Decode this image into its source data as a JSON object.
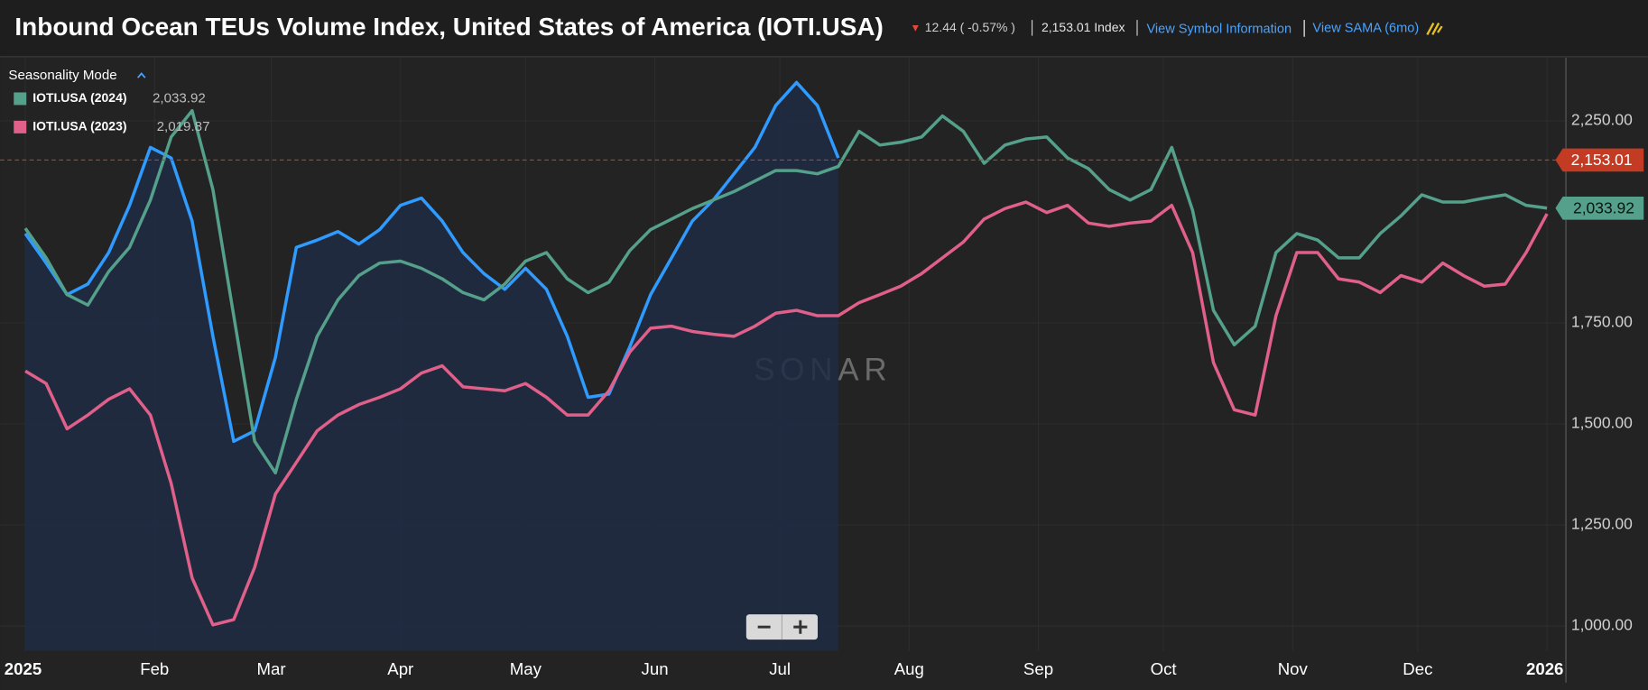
{
  "chart_data": {
    "type": "line",
    "title": "Inbound Ocean TEUs Volume Index, United States of America (IOTI.USA)",
    "change": "12.44 ( -0.57% )",
    "price": "2,153.01 Index",
    "links": [
      "View Symbol Information",
      "View SAMA (6mo)"
    ],
    "legend_title": "Seasonality Mode",
    "watermark": "SONAR",
    "xlim": [
      -6.05,
      369.55
    ],
    "xticks": [
      {
        "value": 0,
        "label": "2025"
      },
      {
        "value": 31,
        "label": "Feb"
      },
      {
        "value": 59,
        "label": "Mar"
      },
      {
        "value": 90,
        "label": "Apr"
      },
      {
        "value": 120,
        "label": "May"
      },
      {
        "value": 151,
        "label": "Jun"
      },
      {
        "value": 181,
        "label": "Jul"
      },
      {
        "value": 212,
        "label": "Aug"
      },
      {
        "value": 243,
        "label": "Sep"
      },
      {
        "value": 273,
        "label": "Oct"
      },
      {
        "value": 304,
        "label": "Nov"
      },
      {
        "value": 334,
        "label": "Dec"
      },
      {
        "value": 365,
        "label": "2026"
      }
    ],
    "ylim": [
      938,
      2406
    ],
    "yticks": [
      {
        "value": 1000,
        "label": "1,000.00"
      },
      {
        "value": 1250,
        "label": "1,250.00"
      },
      {
        "value": 1500,
        "label": "1,500.00"
      },
      {
        "value": 1750,
        "label": "1,750.00"
      },
      {
        "value": 2250,
        "label": "2,250.00"
      }
    ],
    "grid": true,
    "reference_line": {
      "value": 2153.01,
      "label": "2,153.01",
      "color": "#c23b22"
    },
    "x": [
      0,
      5,
      10,
      15,
      20,
      25,
      30,
      35,
      40,
      45,
      50,
      55,
      60,
      65,
      70,
      75,
      80,
      85,
      90,
      95,
      100,
      105,
      110,
      115,
      120,
      125,
      130,
      135,
      140,
      145,
      150,
      155,
      160,
      165,
      170,
      175,
      180,
      185,
      190,
      195,
      200,
      205,
      210,
      215,
      220,
      225,
      230,
      235,
      240,
      245,
      250,
      255,
      260,
      265,
      270,
      275,
      280,
      285,
      290,
      295,
      300,
      305,
      310,
      315,
      320,
      325,
      330,
      335,
      340,
      345,
      350,
      355,
      360,
      365
    ],
    "series": [
      {
        "name": "IOTI.USA (2024)",
        "color": "#55a08a",
        "last_label": "2,033.92",
        "values": [
          1984,
          1911,
          1820,
          1794,
          1877,
          1937,
          2054,
          2210,
          2275,
          2080,
          1768,
          1457,
          1379,
          1561,
          1717,
          1807,
          1867,
          1898,
          1903,
          1885,
          1859,
          1825,
          1807,
          1846,
          1903,
          1924,
          1859,
          1825,
          1851,
          1929,
          1981,
          2007,
          2033,
          2054,
          2075,
          2101,
          2127,
          2127,
          2119,
          2137,
          2224,
          2190,
          2197,
          2210,
          2262,
          2224,
          2145,
          2190,
          2205,
          2210,
          2158,
          2132,
          2080,
          2054,
          2080,
          2184,
          2028,
          1781,
          1696,
          1742,
          1924,
          1971,
          1955,
          1911,
          1911,
          1971,
          2015,
          2067,
          2049,
          2049,
          2059,
          2067,
          2041,
          2033.92
        ]
      },
      {
        "name": "IOTI.USA (2023)",
        "color": "#e0608a",
        "last_label": "2,019.87",
        "values": [
          1631,
          1600,
          1488,
          1522,
          1561,
          1587,
          1522,
          1353,
          1119,
          1003,
          1016,
          1145,
          1327,
          1405,
          1483,
          1522,
          1548,
          1566,
          1587,
          1626,
          1644,
          1592,
          1587,
          1582,
          1600,
          1566,
          1522,
          1522,
          1582,
          1678,
          1737,
          1742,
          1729,
          1722,
          1717,
          1742,
          1774,
          1781,
          1768,
          1768,
          1800,
          1820,
          1841,
          1872,
          1911,
          1950,
          2007,
          2033,
          2049,
          2023,
          2041,
          1997,
          1989,
          1997,
          2002,
          2041,
          1924,
          1652,
          1535,
          1522,
          1768,
          1924,
          1924,
          1859,
          1851,
          1825,
          1867,
          1851,
          1898,
          1867,
          1841,
          1846,
          1924,
          2019.87
        ]
      },
      {
        "color": "#2f9bff",
        "area": true,
        "values": [
          1971,
          1898,
          1820,
          1846,
          1924,
          2041,
          2184,
          2158,
          2002,
          1717,
          1457,
          1483,
          1665,
          1937,
          1955,
          1976,
          1945,
          1981,
          2041,
          2059,
          2002,
          1924,
          1872,
          1833,
          1885,
          1833,
          1717,
          1566,
          1574,
          1691,
          1820,
          1911,
          2002,
          2054,
          2119,
          2184,
          2288,
          2345,
          2288,
          2158,
          null,
          null,
          null,
          null,
          null,
          null,
          null,
          null,
          null,
          null,
          null,
          null,
          null,
          null,
          null,
          null,
          null,
          null,
          null,
          null,
          null,
          null,
          null,
          null,
          null,
          null,
          null,
          null,
          null,
          null,
          null,
          null,
          null,
          null
        ]
      }
    ]
  }
}
